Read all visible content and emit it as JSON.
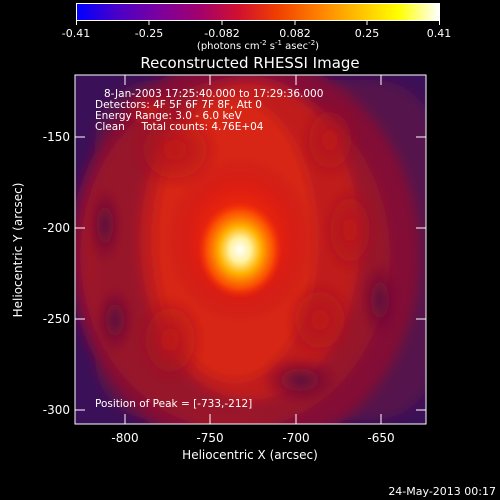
{
  "colorbar": {
    "tick_labels": [
      "-0.41",
      "-0.25",
      "-0.082",
      "0.082",
      "0.25",
      "0.41"
    ],
    "unit_label_parts": [
      "(photons cm",
      "-2",
      " s",
      "-1",
      " asec",
      "-2",
      ")"
    ],
    "colors": [
      "#0000ff",
      "#4a00c8",
      "#7a00a0",
      "#a00070",
      "#d01030",
      "#f04000",
      "#ff8000",
      "#ffc000",
      "#ffff00",
      "#ffffff"
    ]
  },
  "plot": {
    "title": "Reconstructed RHESSI Image",
    "info_lines": [
      "8-Jan-2003 17:25:40.000 to 17:29:36.000",
      "Detectors: 4F 5F 6F 7F 8F, Att 0",
      "Energy Range: 3.0 - 6.0 keV",
      "Clean     Total counts: 4.76E+04"
    ],
    "peak_label": "Position of Peak = [-733,-212]",
    "xlabel": "Heliocentric X (arcsec)",
    "ylabel": "Heliocentric Y (arcsec)",
    "x_ticks": [
      "-800",
      "-750",
      "-700",
      "-650"
    ],
    "y_ticks": [
      "-150",
      "-200",
      "-250",
      "-300"
    ]
  },
  "footer": {
    "date": "24-May-2013 00:17"
  }
}
